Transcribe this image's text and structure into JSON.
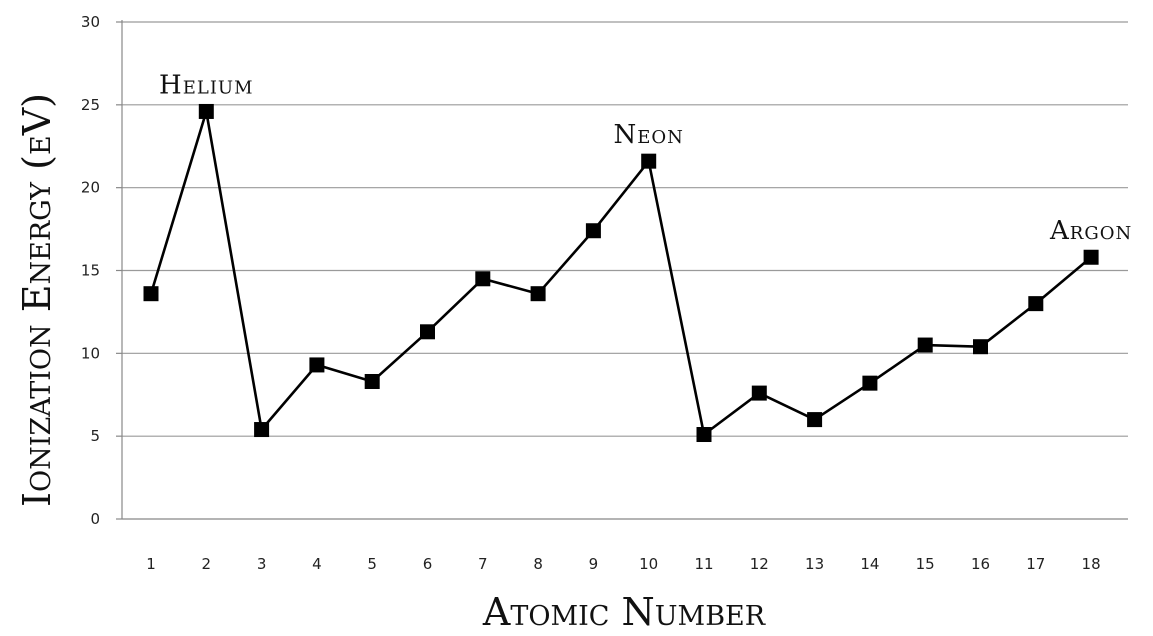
{
  "chart_data": {
    "type": "line",
    "xlabel": "Atomic Number",
    "ylabel": "Ionization Energy (eV)",
    "ylim": [
      0,
      30
    ],
    "yticks": [
      0,
      5,
      10,
      15,
      20,
      25,
      30
    ],
    "grid": "horizontal",
    "x": [
      1,
      2,
      3,
      4,
      5,
      6,
      7,
      8,
      9,
      10,
      11,
      12,
      13,
      14,
      15,
      16,
      17,
      18
    ],
    "series": [
      {
        "values": [
          13.6,
          24.6,
          5.4,
          9.3,
          8.3,
          11.3,
          14.5,
          13.6,
          17.4,
          21.6,
          5.1,
          7.6,
          6.0,
          8.2,
          10.5,
          10.4,
          13.0,
          15.8
        ]
      }
    ],
    "annotations": [
      {
        "text": "Helium",
        "x": 2,
        "y": 24.6
      },
      {
        "text": "Neon",
        "x": 10,
        "y": 21.6
      },
      {
        "text": "Argon",
        "x": 18,
        "y": 15.8
      }
    ],
    "colors": {
      "line": "#000000",
      "marker": "#000000",
      "grid": "#9a9a9a",
      "axis": "#888888"
    }
  }
}
